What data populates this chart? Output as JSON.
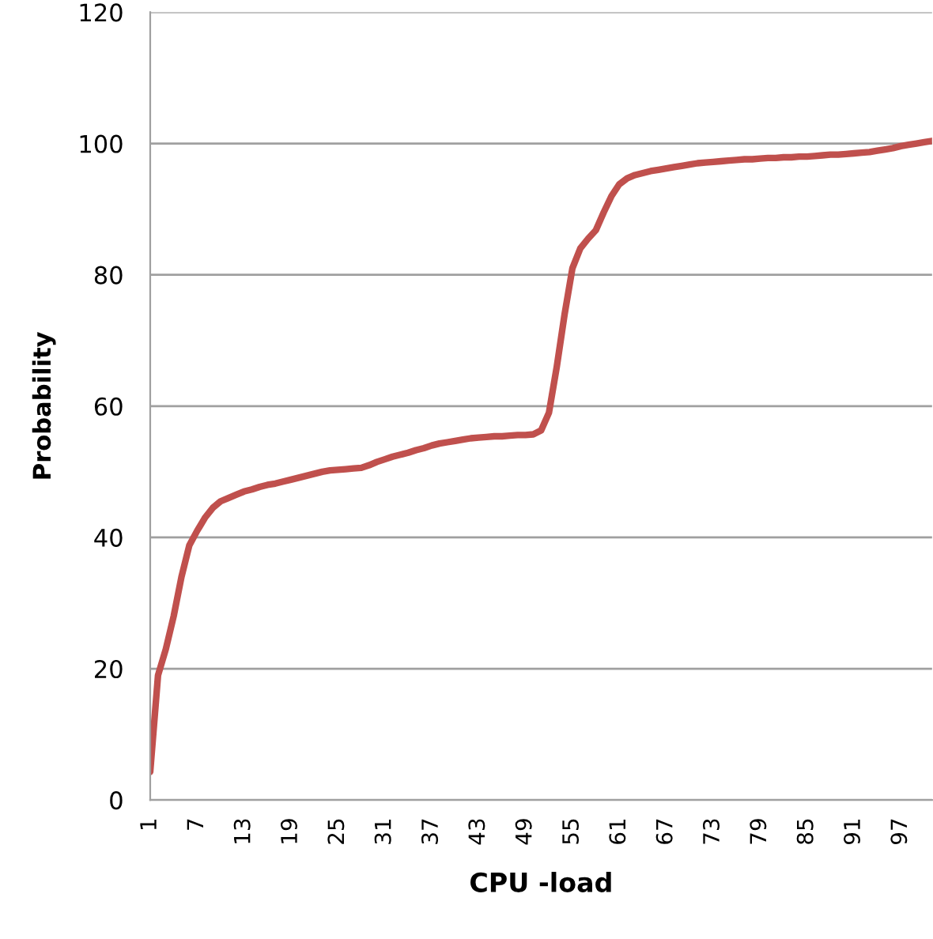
{
  "chart_data": {
    "type": "line",
    "xlabel": "CPU -load",
    "ylabel": "Probability",
    "categories": [
      "1",
      null,
      null,
      null,
      null,
      null,
      "7",
      null,
      null,
      null,
      null,
      null,
      "13",
      null,
      null,
      null,
      null,
      null,
      "19",
      null,
      null,
      null,
      null,
      null,
      "25",
      null,
      null,
      null,
      null,
      null,
      "31",
      null,
      null,
      null,
      null,
      null,
      "37",
      null,
      null,
      null,
      null,
      null,
      "43",
      null,
      null,
      null,
      null,
      null,
      "49",
      null,
      null,
      null,
      null,
      null,
      "55",
      null,
      null,
      null,
      null,
      null,
      "61",
      null,
      null,
      null,
      null,
      null,
      "67",
      null,
      null,
      null,
      null,
      null,
      "73",
      null,
      null,
      null,
      null,
      null,
      "79",
      null,
      null,
      null,
      null,
      null,
      "85",
      null,
      null,
      null,
      null,
      null,
      "91",
      null,
      null,
      null,
      null,
      null,
      "97",
      null,
      null,
      null,
      null
    ],
    "series": [
      {
        "color": "#c0504d",
        "values": [
          4.3,
          19,
          23,
          28,
          34,
          38.8,
          41,
          43,
          44.5,
          45.5,
          46,
          46.5,
          47,
          47.3,
          47.7,
          48,
          48.2,
          48.5,
          48.8,
          49.1,
          49.4,
          49.7,
          50,
          50.2,
          50.3,
          50.4,
          50.5,
          50.6,
          51,
          51.5,
          51.9,
          52.3,
          52.6,
          52.9,
          53.3,
          53.6,
          54,
          54.3,
          54.5,
          54.7,
          54.9,
          55.1,
          55.2,
          55.3,
          55.4,
          55.4,
          55.5,
          55.6,
          55.6,
          55.7,
          56.3,
          59,
          66,
          74,
          81,
          84,
          85.5,
          86.8,
          89.5,
          92,
          93.8,
          94.7,
          95.2,
          95.5,
          95.8,
          96,
          96.2,
          96.4,
          96.6,
          96.8,
          97,
          97.1,
          97.2,
          97.3,
          97.4,
          97.5,
          97.6,
          97.6,
          97.7,
          97.8,
          97.8,
          97.9,
          97.9,
          98,
          98,
          98.1,
          98.2,
          98.3,
          98.3,
          98.4,
          98.5,
          98.6,
          98.7,
          98.9,
          99.1,
          99.3,
          99.6,
          99.8,
          100,
          100.2,
          100.4
        ]
      }
    ],
    "ylim": [
      0,
      120
    ],
    "yticks": [
      0,
      20,
      40,
      60,
      80,
      100,
      120
    ],
    "grid": "y",
    "marker": "none",
    "line_style": "solid"
  }
}
